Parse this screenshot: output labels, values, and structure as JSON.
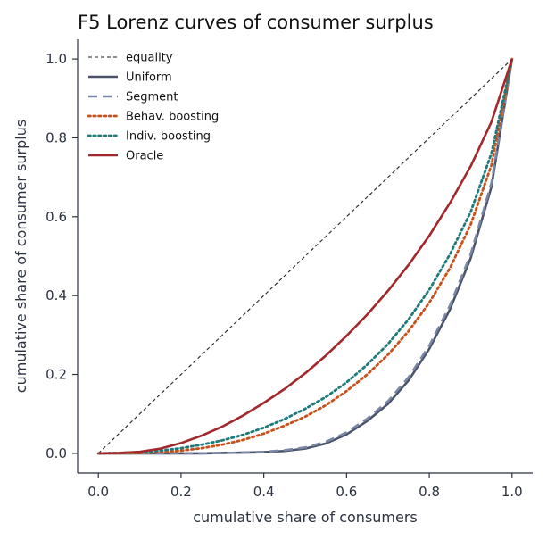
{
  "chart_data": {
    "type": "line",
    "title": "F5  Lorenz curves of consumer surplus",
    "xlabel": "cumulative share of consumers",
    "ylabel": "cumulative share of consumer surplus",
    "xlim": [
      -0.05,
      1.05
    ],
    "ylim": [
      -0.05,
      1.05
    ],
    "xticks": [
      0.0,
      0.2,
      0.4,
      0.6,
      0.8,
      1.0
    ],
    "yticks": [
      0.0,
      0.2,
      0.4,
      0.6,
      0.8,
      1.0
    ],
    "xtick_labels": [
      "0.0",
      "0.2",
      "0.4",
      "0.6",
      "0.8",
      "1.0"
    ],
    "ytick_labels": [
      "0.0",
      "0.2",
      "0.4",
      "0.6",
      "0.8",
      "1.0"
    ],
    "grid": false,
    "legend_position": "top-left",
    "x": [
      0,
      0.05,
      0.1,
      0.15,
      0.2,
      0.25,
      0.3,
      0.35,
      0.4,
      0.45,
      0.5,
      0.55,
      0.6,
      0.65,
      0.7,
      0.75,
      0.8,
      0.85,
      0.9,
      0.95,
      1.0
    ],
    "series": [
      {
        "name": "equality",
        "color": "#222222",
        "dash": "dashed-thin",
        "values": [
          0,
          0.05,
          0.1,
          0.15,
          0.2,
          0.25,
          0.3,
          0.35,
          0.4,
          0.45,
          0.5,
          0.55,
          0.6,
          0.65,
          0.7,
          0.75,
          0.8,
          0.85,
          0.9,
          0.95,
          1.0
        ]
      },
      {
        "name": "Uniform",
        "color": "#4a5468",
        "dash": "solid",
        "values": [
          0,
          0,
          0,
          0,
          0,
          0,
          0.001,
          0.002,
          0.003,
          0.006,
          0.012,
          0.025,
          0.048,
          0.082,
          0.125,
          0.185,
          0.265,
          0.365,
          0.495,
          0.675,
          1.0
        ]
      },
      {
        "name": "Segment",
        "color": "#7b87a6",
        "dash": "dashed",
        "values": [
          0,
          0,
          0,
          0,
          0,
          0,
          0.001,
          0.002,
          0.004,
          0.008,
          0.015,
          0.029,
          0.053,
          0.088,
          0.132,
          0.193,
          0.273,
          0.375,
          0.505,
          0.685,
          1.0
        ]
      },
      {
        "name": "Behav. boosting",
        "color": "#c8511b",
        "dash": "dotted",
        "values": [
          0,
          0,
          0.001,
          0.003,
          0.007,
          0.013,
          0.022,
          0.034,
          0.05,
          0.07,
          0.093,
          0.122,
          0.158,
          0.2,
          0.25,
          0.31,
          0.382,
          0.47,
          0.58,
          0.73,
          1.0
        ]
      },
      {
        "name": "Indiv. boosting",
        "color": "#1f7a7a",
        "dash": "dotted",
        "values": [
          0,
          0.001,
          0.003,
          0.007,
          0.013,
          0.022,
          0.033,
          0.047,
          0.065,
          0.087,
          0.113,
          0.143,
          0.18,
          0.225,
          0.277,
          0.34,
          0.415,
          0.505,
          0.612,
          0.76,
          1.0
        ]
      },
      {
        "name": "Oracle",
        "color": "#a3282b",
        "dash": "solid",
        "values": [
          0,
          0.001,
          0.004,
          0.012,
          0.026,
          0.045,
          0.068,
          0.096,
          0.128,
          0.163,
          0.203,
          0.248,
          0.298,
          0.352,
          0.412,
          0.478,
          0.552,
          0.635,
          0.728,
          0.84,
          1.0
        ]
      }
    ]
  }
}
